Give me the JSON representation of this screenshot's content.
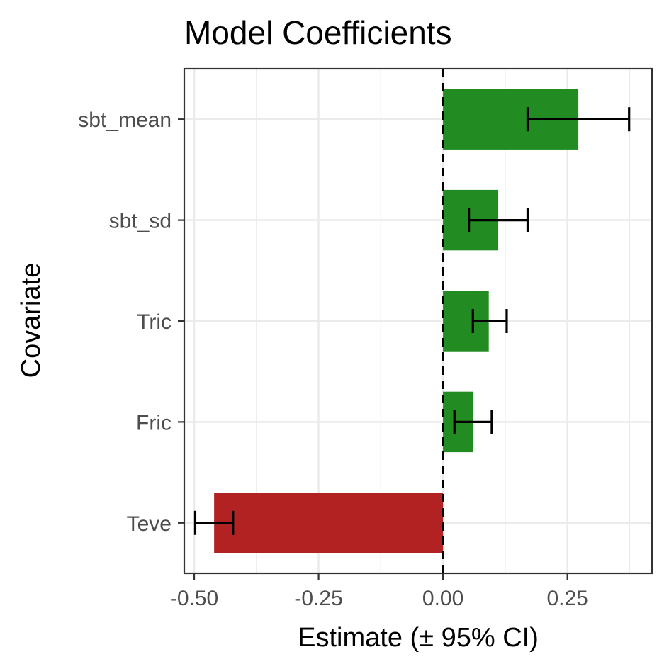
{
  "chart_data": {
    "type": "bar",
    "orientation": "horizontal",
    "title": "Model Coefficients",
    "xlabel": "Estimate (± 95% CI)",
    "ylabel": "Covariate",
    "xlim": [
      -0.52,
      0.42
    ],
    "xticks": [
      -0.5,
      -0.25,
      0.0,
      0.25
    ],
    "xtick_labels": [
      "-0.50",
      "-0.25",
      "0.00",
      "0.25"
    ],
    "reference_line": {
      "x": 0,
      "style": "dashed"
    },
    "grid": true,
    "categories": [
      "sbt_mean",
      "sbt_sd",
      "Tric",
      "Fric",
      "Teve"
    ],
    "values": [
      0.272,
      0.111,
      0.092,
      0.06,
      -0.46
    ],
    "ci_low": [
      0.17,
      0.052,
      0.06,
      0.023,
      -0.498
    ],
    "ci_high": [
      0.374,
      0.17,
      0.128,
      0.098,
      -0.422
    ],
    "colors": {
      "positive": "#228b22",
      "negative": "#b22222",
      "errorbar": "#000000",
      "grid": "#ebebeb",
      "panel_border": "#333333"
    }
  }
}
